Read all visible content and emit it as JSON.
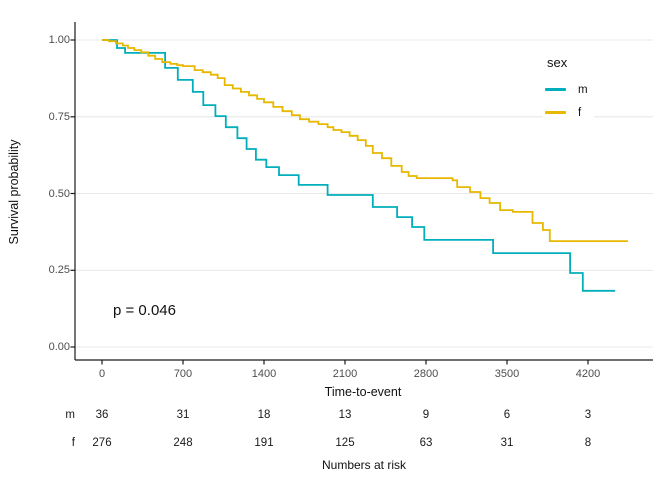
{
  "chart_data": {
    "type": "line",
    "subtype": "kaplan-meier-step",
    "title": "",
    "xlabel": "Time-to-event",
    "ylabel": "Survival probability",
    "x_ticks": [
      0,
      700,
      1400,
      2100,
      2800,
      3500,
      4200
    ],
    "x_tick_labels": [
      "0",
      "700",
      "1400",
      "2100",
      "2800",
      "3500",
      "4200"
    ],
    "y_ticks": [
      0,
      0.25,
      0.5,
      0.75,
      1.0
    ],
    "y_tick_labels": [
      "0.00",
      "0.25",
      "0.50",
      "0.75",
      "1.00"
    ],
    "xlim": [
      0,
      4600
    ],
    "ylim": [
      0,
      1.0
    ],
    "grid": "horizontal-only",
    "annotation": {
      "p_value": "p = 0.046"
    },
    "legend": {
      "title": "sex",
      "position": "top-right",
      "entries": [
        {
          "label": "m",
          "color": "#00AFBB"
        },
        {
          "label": "f",
          "color": "#E7B800"
        }
      ]
    },
    "series": [
      {
        "name": "m",
        "color": "#00AFBB",
        "t_end": 4435,
        "points": [
          [
            0,
            1.0
          ],
          [
            130,
            0.974
          ],
          [
            200,
            0.958
          ],
          [
            545,
            0.909
          ],
          [
            655,
            0.87
          ],
          [
            785,
            0.831
          ],
          [
            875,
            0.788
          ],
          [
            980,
            0.752
          ],
          [
            1070,
            0.716
          ],
          [
            1170,
            0.68
          ],
          [
            1250,
            0.645
          ],
          [
            1330,
            0.61
          ],
          [
            1420,
            0.586
          ],
          [
            1530,
            0.56
          ],
          [
            1700,
            0.528
          ],
          [
            1950,
            0.495
          ],
          [
            2340,
            0.456
          ],
          [
            2550,
            0.423
          ],
          [
            2680,
            0.391
          ],
          [
            2785,
            0.349
          ],
          [
            3380,
            0.306
          ],
          [
            4045,
            0.241
          ],
          [
            4155,
            0.183
          ]
        ]
      },
      {
        "name": "f",
        "color": "#E7B800",
        "t_end": 4545,
        "points": [
          [
            0,
            1.0
          ],
          [
            60,
            0.996
          ],
          [
            120,
            0.989
          ],
          [
            180,
            0.982
          ],
          [
            225,
            0.974
          ],
          [
            280,
            0.967
          ],
          [
            340,
            0.96
          ],
          [
            400,
            0.949
          ],
          [
            460,
            0.938
          ],
          [
            520,
            0.928
          ],
          [
            590,
            0.922
          ],
          [
            650,
            0.918
          ],
          [
            700,
            0.915
          ],
          [
            800,
            0.902
          ],
          [
            870,
            0.895
          ],
          [
            940,
            0.887
          ],
          [
            1000,
            0.876
          ],
          [
            1060,
            0.853
          ],
          [
            1130,
            0.842
          ],
          [
            1200,
            0.831
          ],
          [
            1270,
            0.82
          ],
          [
            1340,
            0.808
          ],
          [
            1400,
            0.797
          ],
          [
            1480,
            0.782
          ],
          [
            1560,
            0.768
          ],
          [
            1640,
            0.755
          ],
          [
            1710,
            0.742
          ],
          [
            1790,
            0.734
          ],
          [
            1870,
            0.726
          ],
          [
            1950,
            0.716
          ],
          [
            2000,
            0.707
          ],
          [
            2070,
            0.7
          ],
          [
            2140,
            0.688
          ],
          [
            2210,
            0.674
          ],
          [
            2280,
            0.655
          ],
          [
            2340,
            0.632
          ],
          [
            2420,
            0.615
          ],
          [
            2500,
            0.59
          ],
          [
            2590,
            0.57
          ],
          [
            2650,
            0.557
          ],
          [
            2720,
            0.55
          ],
          [
            3030,
            0.543
          ],
          [
            3070,
            0.521
          ],
          [
            3180,
            0.505
          ],
          [
            3270,
            0.485
          ],
          [
            3350,
            0.469
          ],
          [
            3440,
            0.446
          ],
          [
            3550,
            0.44
          ],
          [
            3720,
            0.404
          ],
          [
            3810,
            0.381
          ],
          [
            3870,
            0.345
          ]
        ]
      }
    ]
  },
  "risk_table": {
    "caption": "Numbers at risk",
    "time_points": [
      0,
      700,
      1400,
      2100,
      2800,
      3500,
      4200
    ],
    "rows": [
      {
        "label": "m",
        "counts": [
          "36",
          "31",
          "18",
          "13",
          "9",
          "6",
          "3"
        ]
      },
      {
        "label": "f",
        "counts": [
          "276",
          "248",
          "191",
          "125",
          "63",
          "31",
          "8"
        ]
      }
    ]
  },
  "colors": {
    "male": "#00AFBB",
    "female": "#E7B800",
    "gridline": "#e9e9e9",
    "axis": "#1a1a1a",
    "tick_text": "#4d4d4d"
  }
}
